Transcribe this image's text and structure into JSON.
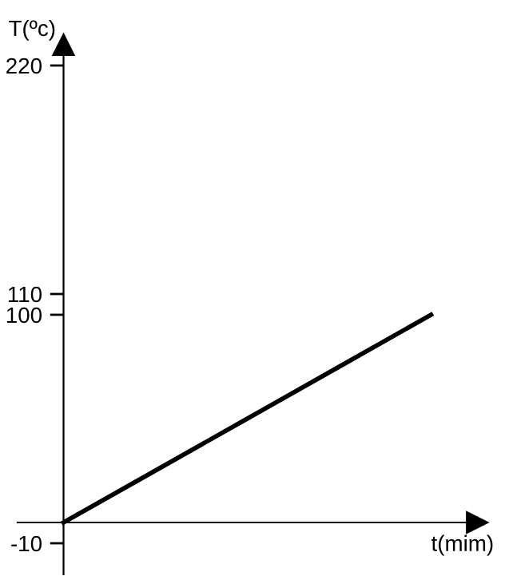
{
  "chart_data": {
    "type": "line",
    "xlabel": "t(mim)",
    "ylabel": "T(ºc)",
    "categories": [
      null,
      null,
      null,
      null,
      null
    ],
    "series": [
      {
        "color": "#000000",
        "values": [
          0,
          25,
          50,
          75,
          100
        ]
      }
    ],
    "ylim": [
      -25,
      230
    ],
    "yticks": [
      -10,
      100,
      110,
      220
    ],
    "tick_labels": "y",
    "grid": false,
    "legend": false,
    "marker": "none",
    "line_style": "solid"
  }
}
